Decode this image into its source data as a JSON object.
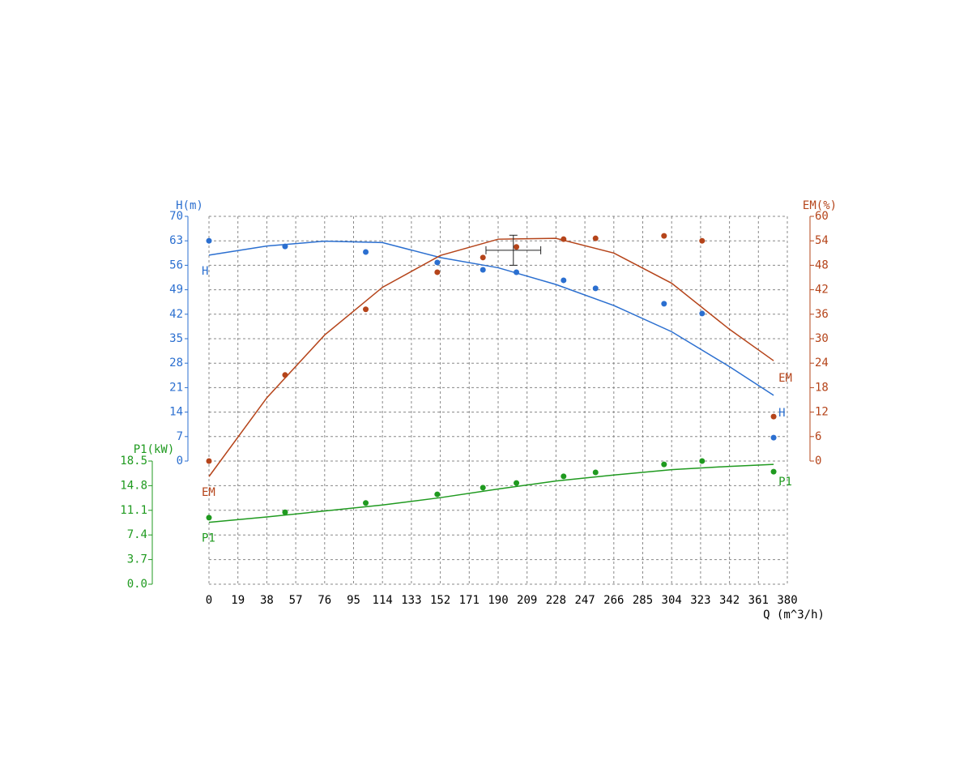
{
  "chart_data": {
    "type": "line",
    "x_label": "Q (m^3/h)",
    "xlim": [
      0,
      380
    ],
    "xticks": [
      0,
      19,
      38,
      57,
      76,
      95,
      114,
      133,
      152,
      171,
      190,
      209,
      228,
      247,
      266,
      285,
      304,
      323,
      342,
      361,
      380
    ],
    "ylabel": "H(m)",
    "ylim": [
      0,
      70
    ],
    "yticks": [
      0,
      7,
      14,
      21,
      28,
      35,
      42,
      49,
      56,
      63,
      70
    ],
    "y2label": "EM(%)",
    "y2lim": [
      0,
      60
    ],
    "y2ticks": [
      0,
      6,
      12,
      18,
      24,
      30,
      36,
      42,
      48,
      54,
      60
    ],
    "y3label": "P1(kW)",
    "y3lim": [
      0,
      18.5
    ],
    "y3ticks": [
      {
        "value": 0,
        "label": "0.0"
      },
      3.7,
      7.4,
      11.1,
      14.8,
      18.5
    ],
    "grid": true,
    "x": [
      0,
      38,
      76,
      114,
      152,
      190,
      228,
      266,
      304,
      342,
      371
    ],
    "points_x": [
      0,
      50,
      103,
      150,
      180,
      202,
      233,
      254,
      299,
      324,
      371
    ],
    "series": [
      {
        "name": "H",
        "color": "#2b6fd0",
        "axis": "y",
        "values": [
          58.9,
          61.5,
          62.9,
          62.5,
          58.2,
          55.3,
          50.5,
          44.5,
          37,
          27,
          18.8
        ],
        "point_values": [
          63.0,
          61.4,
          59.8,
          56.8,
          54.7,
          54.0,
          51.7,
          49.4,
          45.0,
          42.2,
          6.7
        ]
      },
      {
        "name": "EM",
        "color": "#b5441a",
        "axis": "y2",
        "values": [
          -3.8,
          15.5,
          30.9,
          42.6,
          50.4,
          54.4,
          54.6,
          51.0,
          43.6,
          32.3,
          24.6
        ],
        "point_values": [
          0,
          21.1,
          37.2,
          46.3,
          49.9,
          52.5,
          54.4,
          54.6,
          55.2,
          54.0,
          10.9
        ]
      },
      {
        "name": "P1",
        "color": "#1f9a1f",
        "axis": "y3",
        "values": [
          9.3,
          10.1,
          11.0,
          11.9,
          13.0,
          14.3,
          15.5,
          16.4,
          17.2,
          17.7,
          18.0
        ],
        "point_values": [
          10.0,
          10.8,
          12.2,
          13.5,
          14.5,
          15.2,
          16.2,
          16.8,
          18.0,
          18.5,
          16.9
        ]
      }
    ],
    "duty_point": {
      "q": 200,
      "h": 60.3,
      "q_err": 18,
      "h_err": 4.3
    }
  }
}
